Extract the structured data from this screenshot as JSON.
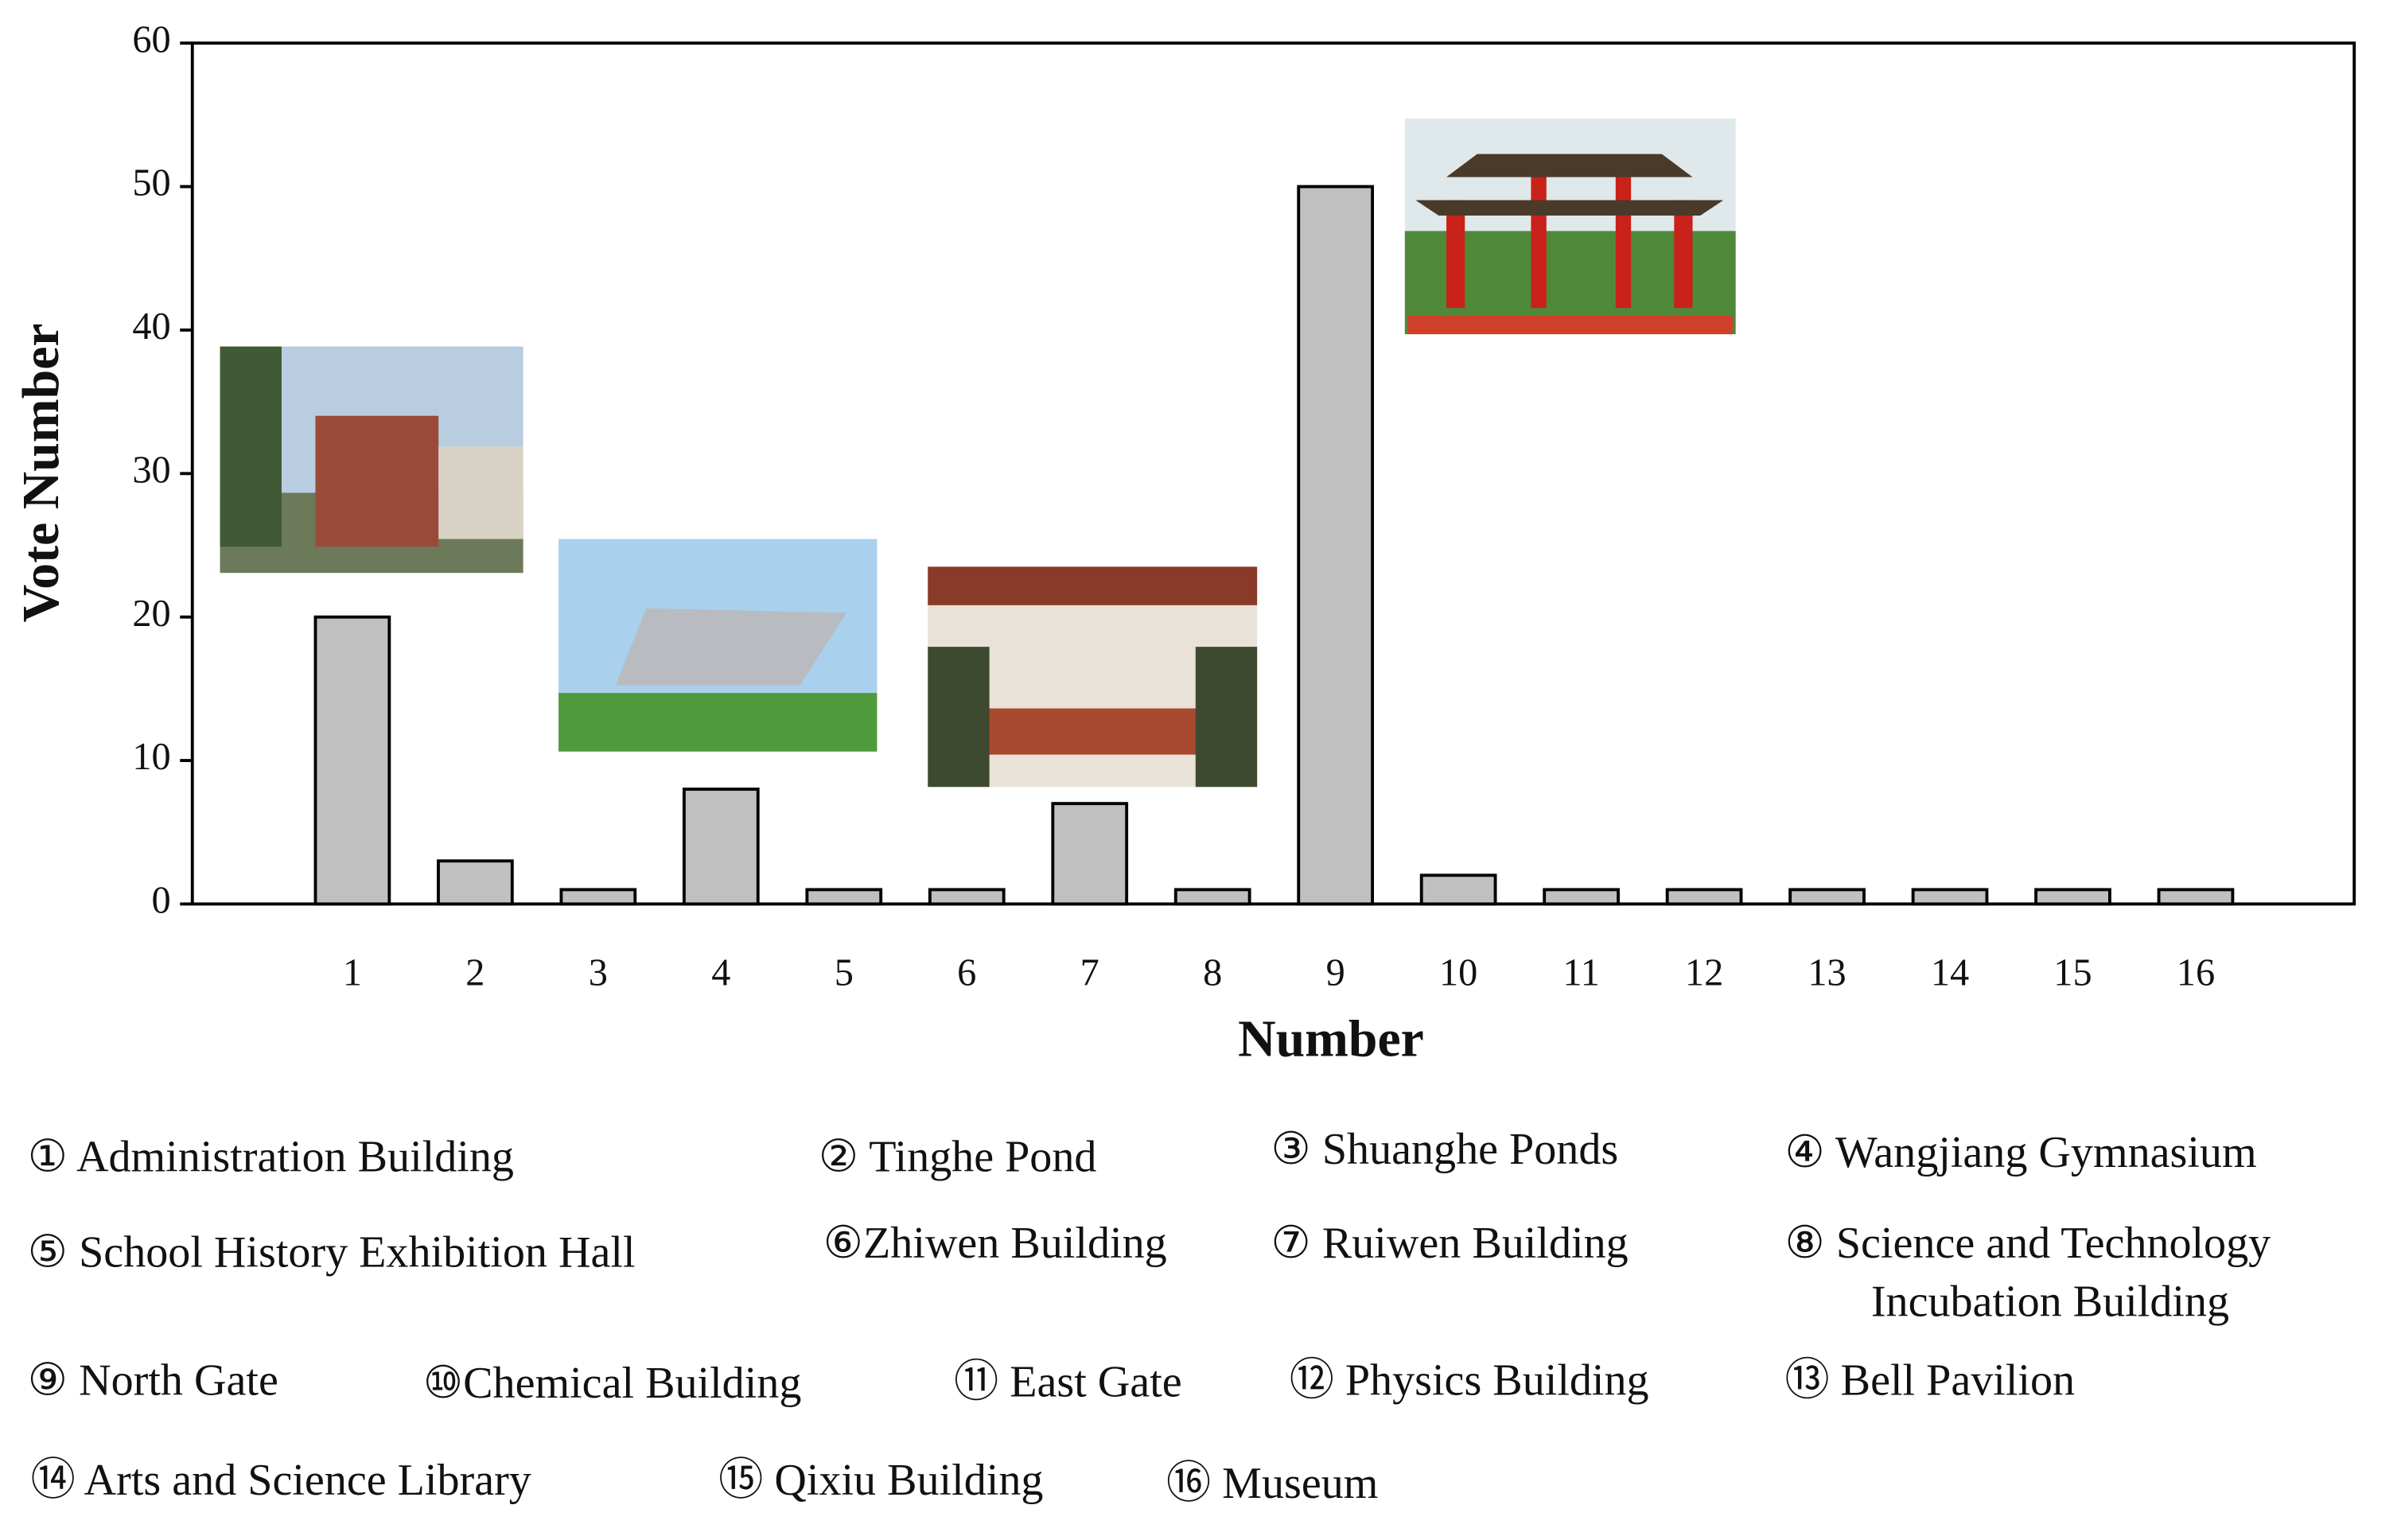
{
  "chart_data": {
    "type": "bar",
    "x_label": "Number",
    "y_label": "Vote Number",
    "categories": [
      "1",
      "2",
      "3",
      "4",
      "5",
      "6",
      "7",
      "8",
      "9",
      "10",
      "11",
      "12",
      "13",
      "14",
      "15",
      "16"
    ],
    "values": [
      20,
      3,
      1,
      8,
      1,
      1,
      7,
      1,
      50,
      2,
      1,
      1,
      1,
      1,
      1,
      1
    ],
    "color": "#c0c0c0",
    "ylim": [
      0,
      60
    ],
    "yticks": [
      0,
      10,
      20,
      30,
      40,
      50,
      60
    ],
    "legend": [
      [
        "① Administration Building"
      ],
      [
        "② Tinghe Pond"
      ],
      [
        "③ Shuanghe Ponds"
      ],
      [
        "④ Wangjiang Gymnasium"
      ],
      [
        "⑤ School History Exhibition Hall"
      ],
      [
        "⑥Zhiwen Building"
      ],
      [
        "⑦ Ruiwen Building"
      ],
      [
        "⑧ Science and Technology",
        "Incubation Building"
      ],
      [
        "⑨ North Gate"
      ],
      [
        "⑩Chemical Building"
      ],
      [
        "⑪ East Gate"
      ],
      [
        "⑫ Physics Building"
      ],
      [
        "⑬ Bell Pavilion"
      ],
      [
        "⑭ Arts and Science Library"
      ],
      [
        "⑮ Qixiu Building"
      ],
      [
        "⑯ Museum"
      ]
    ]
  }
}
